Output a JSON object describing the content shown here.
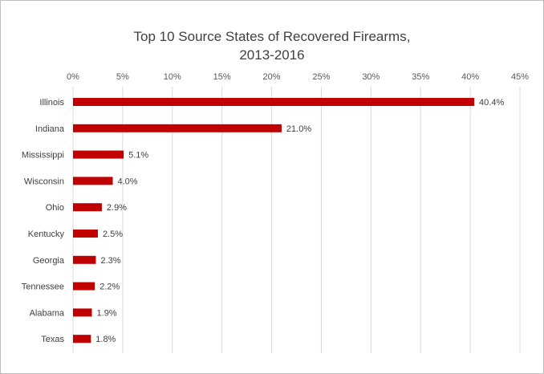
{
  "chart_data": {
    "type": "bar",
    "orientation": "horizontal",
    "title": "Top 10 Source States of Recovered Firearms, 2013-2016",
    "title_lines": [
      "Top 10 Source States of Recovered Firearms,",
      "2013-2016"
    ],
    "categories": [
      "Illinois",
      "Indiana",
      "Mississippi",
      "Wisconsin",
      "Ohio",
      "Kentucky",
      "Georgia",
      "Tennessee",
      "Alabama",
      "Texas"
    ],
    "values": [
      40.4,
      21.0,
      5.1,
      4.0,
      2.9,
      2.5,
      2.3,
      2.2,
      1.9,
      1.8
    ],
    "value_labels": [
      "40.4%",
      "21.0%",
      "5.1%",
      "4.0%",
      "2.9%",
      "2.5%",
      "2.3%",
      "2.2%",
      "1.9%",
      "1.8%"
    ],
    "x_ticks": [
      "0%",
      "5%",
      "10%",
      "15%",
      "20%",
      "25%",
      "30%",
      "35%",
      "40%",
      "45%"
    ],
    "xlim": [
      0,
      45
    ],
    "x_axis_position": "top",
    "grid": true,
    "legend": "none",
    "bar_color": "#c00000",
    "grid_color": "#d9d9d9"
  }
}
